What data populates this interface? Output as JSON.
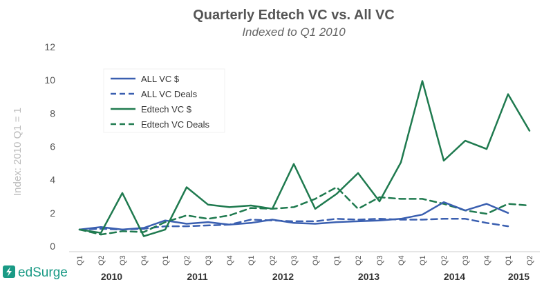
{
  "brand": {
    "name": "edSurge",
    "color": "#1a9a85"
  },
  "chart_data": {
    "type": "line",
    "title": "Quarterly Edtech VC vs. All VC",
    "subtitle": "Indexed to Q1 2010",
    "ylabel": "Index: 2010 Q1 = 1",
    "xlabel": "",
    "ylim": [
      0,
      12
    ],
    "yticks": [
      "0",
      "2",
      "4",
      "6",
      "8",
      "10",
      "12"
    ],
    "grid": false,
    "legend_position": "top-left",
    "categories": [
      "Q1",
      "Q2",
      "Q3",
      "Q4",
      "Q1",
      "Q2",
      "Q3",
      "Q4",
      "Q1",
      "Q2",
      "Q3",
      "Q4",
      "Q1",
      "Q2",
      "Q3",
      "Q4",
      "Q1",
      "Q2",
      "Q3",
      "Q4",
      "Q1",
      "Q2"
    ],
    "years": [
      {
        "label": "2010",
        "start": 0,
        "end": 3
      },
      {
        "label": "2011",
        "start": 4,
        "end": 7
      },
      {
        "label": "2012",
        "start": 8,
        "end": 11
      },
      {
        "label": "2013",
        "start": 12,
        "end": 15
      },
      {
        "label": "2014",
        "start": 16,
        "end": 19
      },
      {
        "label": "2015",
        "start": 20,
        "end": 21
      }
    ],
    "series": [
      {
        "name": "ALL VC $",
        "color": "#3a5fb0",
        "style": "solid",
        "values": [
          1.0,
          1.15,
          1.0,
          1.1,
          1.55,
          1.35,
          1.45,
          1.3,
          1.4,
          1.6,
          1.4,
          1.35,
          1.45,
          1.5,
          1.55,
          1.65,
          1.9,
          2.65,
          2.15,
          2.55,
          2.0,
          null
        ]
      },
      {
        "name": "ALL VC Deals",
        "color": "#3a5fb0",
        "style": "dashed",
        "values": [
          1.0,
          1.05,
          1.0,
          1.05,
          1.2,
          1.2,
          1.25,
          1.3,
          1.6,
          1.55,
          1.5,
          1.5,
          1.65,
          1.6,
          1.65,
          1.6,
          1.6,
          1.65,
          1.65,
          1.4,
          1.2,
          null
        ]
      },
      {
        "name": "Edtech VC $",
        "color": "#1f7a4f",
        "style": "solid",
        "values": [
          1.0,
          0.8,
          3.2,
          0.6,
          1.0,
          3.55,
          2.5,
          2.35,
          2.45,
          2.25,
          4.95,
          2.25,
          3.15,
          4.4,
          2.7,
          5.05,
          9.95,
          5.15,
          6.35,
          5.85,
          9.15,
          6.95
        ]
      },
      {
        "name": "Edtech VC Deals",
        "color": "#1f7a4f",
        "style": "dashed",
        "values": [
          1.0,
          0.7,
          0.9,
          0.85,
          1.45,
          1.85,
          1.65,
          1.85,
          2.3,
          2.25,
          2.35,
          2.85,
          3.55,
          2.25,
          2.95,
          2.85,
          2.85,
          2.55,
          2.15,
          1.95,
          2.55,
          2.45
        ]
      }
    ]
  }
}
